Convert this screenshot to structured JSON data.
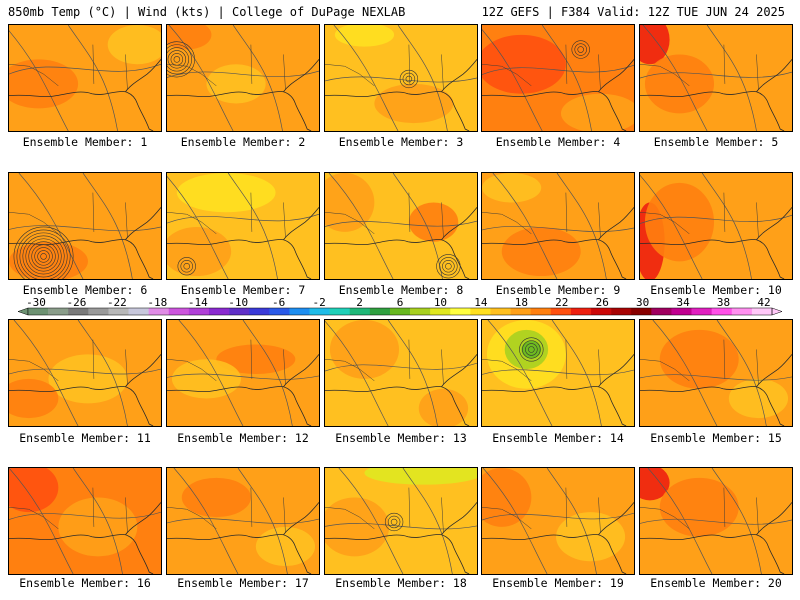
{
  "header": {
    "left_title": "850mb Temp (°C) | Wind (kts) | College of DuPage NEXLAB",
    "right_title": "12Z GEFS | F384 Valid: 12Z TUE JUN 24 2025"
  },
  "colorbar": {
    "tick_labels": [
      "-30",
      "-26",
      "-22",
      "-18",
      "-14",
      "-10",
      "-6",
      "-2",
      "2",
      "6",
      "10",
      "14",
      "18",
      "22",
      "26",
      "30",
      "34",
      "38",
      "42"
    ],
    "colors": [
      "#6d9272",
      "#8a9d8a",
      "#7a7a7a",
      "#9a9a9a",
      "#b8b8b8",
      "#c8c8dc",
      "#e08ce6",
      "#cc55dd",
      "#b040d8",
      "#8a2ad0",
      "#6030c8",
      "#3a3ad8",
      "#2a5ae8",
      "#1e8ef0",
      "#20bce8",
      "#20d0b8",
      "#20b878",
      "#30a040",
      "#68b820",
      "#a8d020",
      "#e0e820",
      "#ffff40",
      "#ffe020",
      "#ffc020",
      "#ffa018",
      "#ff8010",
      "#ff5010",
      "#ee2010",
      "#cc0808",
      "#a80404",
      "#880000",
      "#a00060",
      "#c00090",
      "#e020c0",
      "#ff50e8",
      "#ff90f0",
      "#ffc8f8"
    ]
  },
  "members": [
    {
      "label": "Ensemble Member: 1"
    },
    {
      "label": "Ensemble Member: 2"
    },
    {
      "label": "Ensemble Member: 3"
    },
    {
      "label": "Ensemble Member: 4"
    },
    {
      "label": "Ensemble Member: 5"
    },
    {
      "label": "Ensemble Member: 6"
    },
    {
      "label": "Ensemble Member: 7"
    },
    {
      "label": "Ensemble Member: 8"
    },
    {
      "label": "Ensemble Member: 9"
    },
    {
      "label": "Ensemble Member: 10"
    },
    {
      "label": "Ensemble Member: 11"
    },
    {
      "label": "Ensemble Member: 12"
    },
    {
      "label": "Ensemble Member: 13"
    },
    {
      "label": "Ensemble Member: 14"
    },
    {
      "label": "Ensemble Member: 15"
    },
    {
      "label": "Ensemble Member: 16"
    },
    {
      "label": "Ensemble Member: 17"
    },
    {
      "label": "Ensemble Member: 18"
    },
    {
      "label": "Ensemble Member: 19"
    },
    {
      "label": "Ensemble Member: 20"
    }
  ]
}
